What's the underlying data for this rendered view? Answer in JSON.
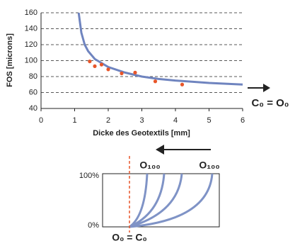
{
  "chart_data": {
    "type": "scatter",
    "xlabel": "Dicke des Geotextils [mm]",
    "ylabel": "FOS [microns]",
    "xlim": [
      0,
      6
    ],
    "xticks": [
      0,
      1,
      2,
      3,
      4,
      5,
      6
    ],
    "ylim": [
      40,
      160
    ],
    "yticks": [
      40,
      60,
      80,
      100,
      120,
      140,
      160
    ],
    "grid": true,
    "series": [
      {
        "type": "scatter",
        "color": "#e8562a",
        "x": [
          1.45,
          1.6,
          1.8,
          2.0,
          2.4,
          2.8,
          3.4,
          4.2
        ],
        "values": [
          99,
          93,
          95,
          89,
          84,
          85,
          74,
          70
        ]
      },
      {
        "type": "line",
        "color": "#6f84bf",
        "x": [
          1.12,
          1.2,
          1.3,
          1.4,
          1.6,
          2.0,
          2.5,
          3.0,
          3.5,
          4.0,
          5.0,
          6.0
        ],
        "values": [
          160,
          135,
          120,
          112,
          102,
          92,
          85,
          80,
          77,
          75,
          72,
          70
        ]
      }
    ],
    "annotation": "C₀ = O₀"
  },
  "diagram": {
    "o100_left": "O₁₀₀",
    "o100_right": "O₁₀₀",
    "label_top": "100%",
    "label_bottom": "0%",
    "origin": "O₀ = C₀"
  }
}
